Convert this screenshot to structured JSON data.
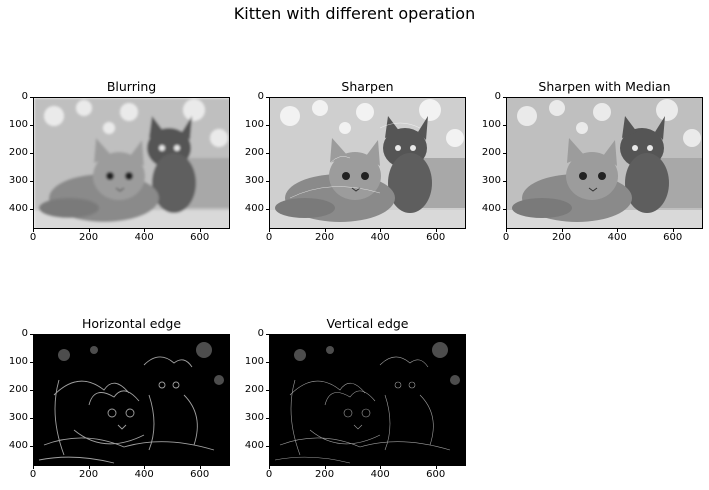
{
  "figure": {
    "title": "Kitten with different operation",
    "x_ticks": [
      "0",
      "200",
      "400",
      "600"
    ],
    "y_ticks": [
      "0",
      "100",
      "200",
      "300",
      "400"
    ],
    "image_extent": {
      "width": 709,
      "height": 473
    }
  },
  "panels": [
    {
      "title": "Blurring",
      "style": "blur"
    },
    {
      "title": "Sharpen",
      "style": "sharp"
    },
    {
      "title": "Sharpen with Median",
      "style": "median"
    },
    {
      "title": "Horizontal edge",
      "style": "hedge"
    },
    {
      "title": "Vertical edge",
      "style": "vedge"
    }
  ]
}
